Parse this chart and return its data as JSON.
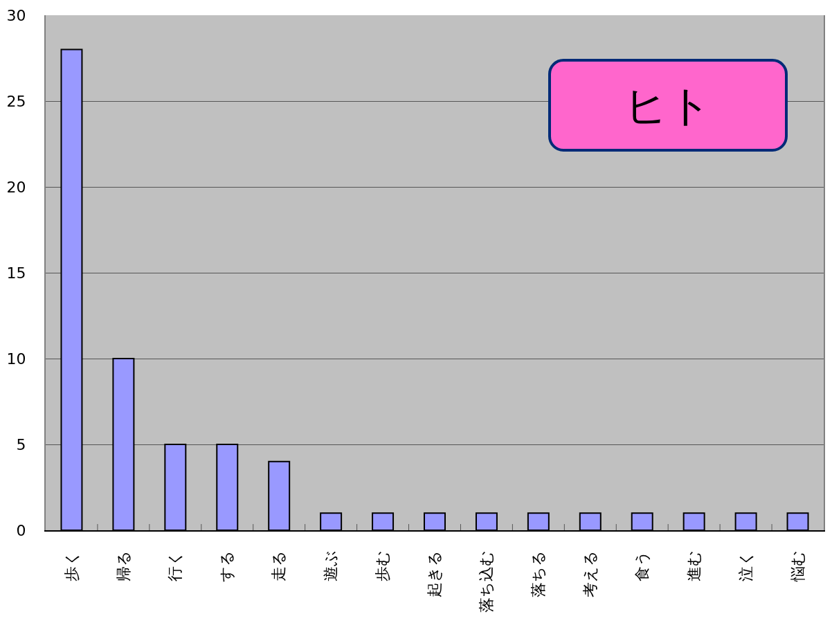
{
  "chart_data": {
    "type": "bar",
    "title": "ヒト",
    "categories": [
      "歩く",
      "帰る",
      "行く",
      "する",
      "走る",
      "遊ぶ",
      "歩む",
      "起きる",
      "落ち込む",
      "落ちる",
      "考える",
      "食う",
      "進む",
      "泣く",
      "悩む"
    ],
    "values": [
      28,
      10,
      5,
      5,
      4,
      1,
      1,
      1,
      1,
      1,
      1,
      1,
      1,
      1,
      1
    ],
    "color": "#9999ff",
    "ylim": [
      0,
      30
    ],
    "yticks": [
      0,
      5,
      10,
      15,
      20,
      25,
      30
    ],
    "grid": "y"
  }
}
